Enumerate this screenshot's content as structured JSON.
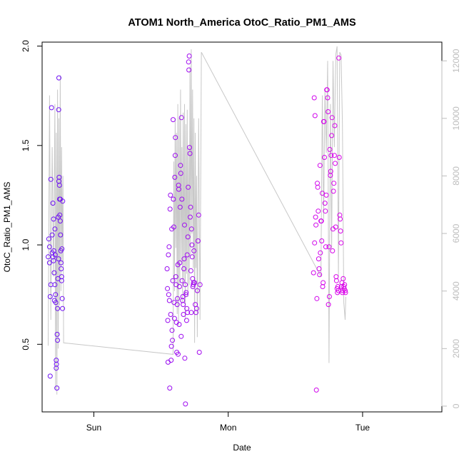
{
  "chart_data": {
    "type": "scatter",
    "title": "ATOM1 North_America OtoC_Ratio_PM1_AMS",
    "xlabel": "Date",
    "ylabel": "OtoC_Ratio_PM1_AMS",
    "x_ticks": [
      "Sun",
      "Mon",
      "Tue"
    ],
    "y_ticks": [
      0.5,
      1.0,
      1.5,
      2.0
    ],
    "ylim": [
      0.16,
      2.02
    ],
    "y2_ticks": [
      0,
      2000,
      4000,
      6000,
      8000,
      10000,
      12000
    ],
    "y2lim": [
      -200,
      12650
    ],
    "x_unit": "days since Sunday 00:00",
    "xlim": [
      -0.385,
      2.59
    ],
    "point_color_gradient": [
      "#6a11f5",
      "#ff00e6"
    ],
    "grid": false,
    "legend": "none",
    "series": [
      {
        "kind": "points",
        "x": [
          -0.34,
          -0.335,
          -0.33,
          -0.33,
          -0.325,
          -0.325,
          -0.32,
          -0.32,
          -0.315,
          -0.31,
          -0.31,
          -0.305,
          -0.305,
          -0.3,
          -0.3,
          -0.298,
          -0.295,
          -0.293,
          -0.29,
          -0.29,
          -0.288,
          -0.285,
          -0.283,
          -0.28,
          -0.28,
          -0.278,
          -0.275,
          -0.273,
          -0.27,
          -0.27,
          -0.268,
          -0.265,
          -0.263,
          -0.262,
          -0.26,
          -0.26,
          -0.258,
          -0.256,
          -0.255,
          -0.253,
          -0.25,
          -0.25,
          -0.248,
          -0.246,
          -0.245,
          -0.243,
          -0.24,
          -0.24,
          -0.238,
          -0.235,
          -0.233,
          -0.232
        ],
        "y": [
          0.94,
          1.03,
          0.91,
          0.99,
          0.74,
          0.34,
          0.8,
          1.33,
          1.69,
          0.96,
          1.05,
          0.94,
          1.21,
          0.92,
          1.13,
          0.97,
          0.86,
          0.72,
          0.8,
          1.08,
          0.95,
          0.75,
          0.71,
          0.38,
          0.42,
          0.4,
          0.28,
          0.55,
          0.52,
          0.68,
          0.83,
          1.14,
          0.93,
          1.68,
          1.84,
          1.32,
          1.34,
          1.3,
          1.23,
          1.15,
          1.12,
          1.23,
          1.05,
          0.97,
          0.91,
          0.88,
          0.84,
          0.82,
          0.98,
          0.73,
          0.68,
          1.22
        ]
      },
      {
        "kind": "points",
        "x": [
          0.545,
          0.548,
          0.55,
          0.552,
          0.555,
          0.557,
          0.56,
          0.562,
          0.565,
          0.567,
          0.57,
          0.572,
          0.575,
          0.577,
          0.58,
          0.582,
          0.585,
          0.587,
          0.59,
          0.592,
          0.595,
          0.597,
          0.6,
          0.602,
          0.605,
          0.607,
          0.61,
          0.612,
          0.615,
          0.617,
          0.62,
          0.622,
          0.625,
          0.627,
          0.63,
          0.632,
          0.635,
          0.637,
          0.64,
          0.642,
          0.645,
          0.647,
          0.65,
          0.652,
          0.655,
          0.657,
          0.66,
          0.662,
          0.665,
          0.667,
          0.67,
          0.672,
          0.675,
          0.677,
          0.68,
          0.682,
          0.685,
          0.687,
          0.69,
          0.692,
          0.695,
          0.697,
          0.7,
          0.702,
          0.705,
          0.707,
          0.71,
          0.712,
          0.715,
          0.717,
          0.72,
          0.722,
          0.725,
          0.727,
          0.73,
          0.732,
          0.735,
          0.737,
          0.74,
          0.742,
          0.745,
          0.75,
          0.755,
          0.76,
          0.765,
          0.77,
          0.775,
          0.78,
          0.785,
          0.79
        ],
        "y": [
          0.88,
          0.78,
          0.62,
          0.41,
          0.95,
          0.75,
          0.99,
          0.72,
          0.28,
          1.18,
          1.25,
          0.65,
          0.42,
          0.49,
          1.08,
          0.57,
          0.52,
          0.82,
          1.63,
          1.23,
          1.09,
          0.71,
          0.63,
          1.34,
          1.45,
          1.54,
          0.84,
          0.8,
          0.61,
          0.46,
          0.7,
          0.73,
          0.9,
          0.45,
          1.3,
          1.28,
          0.6,
          0.79,
          0.91,
          1.19,
          1.4,
          1.36,
          0.54,
          1.64,
          1.23,
          0.82,
          0.72,
          0.74,
          0.7,
          0.65,
          0.88,
          0.93,
          1.1,
          0.43,
          0.8,
          0.2,
          0.75,
          0.76,
          0.62,
          0.68,
          0.95,
          0.66,
          1.04,
          1.29,
          1.92,
          1.88,
          1.95,
          1.49,
          1.46,
          1.14,
          1.19,
          0.87,
          0.66,
          1.08,
          1.0,
          0.94,
          0.83,
          0.79,
          0.8,
          0.81,
          0.97,
          0.81,
          0.7,
          0.66,
          0.68,
          0.77,
          1.02,
          1.15,
          0.46,
          0.8
        ]
      },
      {
        "kind": "points",
        "x": [
          1.635,
          1.64,
          1.643,
          1.646,
          1.65,
          1.653,
          1.656,
          1.66,
          1.663,
          1.666,
          1.67,
          1.673,
          1.676,
          1.68,
          1.683,
          1.686,
          1.69,
          1.693,
          1.696,
          1.7,
          1.703,
          1.706,
          1.71,
          1.713,
          1.716,
          1.72,
          1.723,
          1.726,
          1.73,
          1.733,
          1.736,
          1.74,
          1.743,
          1.746,
          1.75,
          1.753,
          1.756,
          1.76,
          1.763,
          1.766,
          1.77,
          1.773,
          1.776,
          1.78,
          1.783,
          1.786,
          1.79,
          1.793,
          1.796,
          1.8,
          1.803,
          1.806,
          1.81,
          1.813,
          1.816,
          1.82,
          1.823,
          1.826,
          1.83,
          1.833,
          1.836,
          1.84,
          1.843,
          1.846,
          1.85,
          1.853,
          1.856,
          1.86,
          1.863,
          1.866,
          1.87,
          1.873
        ],
        "y": [
          0.86,
          1.74,
          1.01,
          1.65,
          1.14,
          1.1,
          0.27,
          0.73,
          1.31,
          1.29,
          1.17,
          0.93,
          0.88,
          0.85,
          1.4,
          0.96,
          1.12,
          1.12,
          1.02,
          1.26,
          0.79,
          0.81,
          1.62,
          1.62,
          1.44,
          1.21,
          1.17,
          0.99,
          1.25,
          1.78,
          1.78,
          1.74,
          1.67,
          0.7,
          0.99,
          0.74,
          1.48,
          1.35,
          1.37,
          1.45,
          1.55,
          1.64,
          0.97,
          1.08,
          1.27,
          1.31,
          1.45,
          1.6,
          1.41,
          1.09,
          0.84,
          0.82,
          0.78,
          0.76,
          0.79,
          0.77,
          1.94,
          1.44,
          1.15,
          1.13,
          1.07,
          1.01,
          0.79,
          0.81,
          0.76,
          0.77,
          0.83,
          0.79,
          0.78,
          0.8,
          0.77,
          0.76
        ]
      },
      {
        "kind": "line",
        "axis": "right",
        "x": [
          -0.34,
          -0.33,
          -0.32,
          -0.31,
          -0.3,
          -0.29,
          -0.285,
          -0.28,
          -0.275,
          -0.27,
          -0.265,
          -0.26,
          -0.255,
          -0.25,
          -0.245,
          -0.24,
          -0.235,
          -0.23,
          -0.225,
          0.59,
          0.595,
          0.6,
          0.605,
          0.61,
          0.615,
          0.62,
          0.625,
          0.63,
          0.635,
          0.64,
          0.645,
          0.65,
          0.655,
          0.66,
          0.665,
          0.67,
          0.675,
          0.68,
          0.685,
          0.69,
          0.695,
          0.7,
          0.705,
          0.71,
          0.715,
          0.72,
          0.725,
          0.73,
          0.735,
          0.74,
          0.745,
          0.75,
          0.755,
          0.76,
          0.765,
          0.77,
          0.78,
          0.79,
          0.8,
          1.69,
          1.7,
          1.71,
          1.72,
          1.73,
          1.74,
          1.75,
          1.76,
          1.77,
          1.78,
          1.79,
          1.8,
          1.81,
          1.82,
          1.83,
          1.84,
          1.85,
          1.86,
          1.87,
          1.875
        ],
        "y": [
          2100,
          10800,
          3000,
          9000,
          4500,
          10500,
          600,
          9500,
          400,
          11000,
          2000,
          10000,
          3500,
          11500,
          4000,
          9000,
          5000,
          8000,
          2200,
          1800,
          8500,
          4000,
          10000,
          5500,
          9500,
          3200,
          10500,
          2800,
          10000,
          4200,
          11000,
          5000,
          9000,
          3600,
          10200,
          4400,
          10500,
          3000,
          9800,
          4600,
          10300,
          3800,
          9000,
          4200,
          11800,
          5200,
          12400,
          6000,
          11000,
          4800,
          10000,
          2200,
          9500,
          4800,
          8000,
          2400,
          10000,
          3000,
          12300,
          4500,
          10800,
          6500,
          11000,
          8800,
          12000,
          1500,
          10500,
          5500,
          12000,
          9000,
          12200,
          12500,
          4500,
          12300,
          12200,
          9800,
          3600,
          3000,
          3800
        ]
      }
    ]
  }
}
